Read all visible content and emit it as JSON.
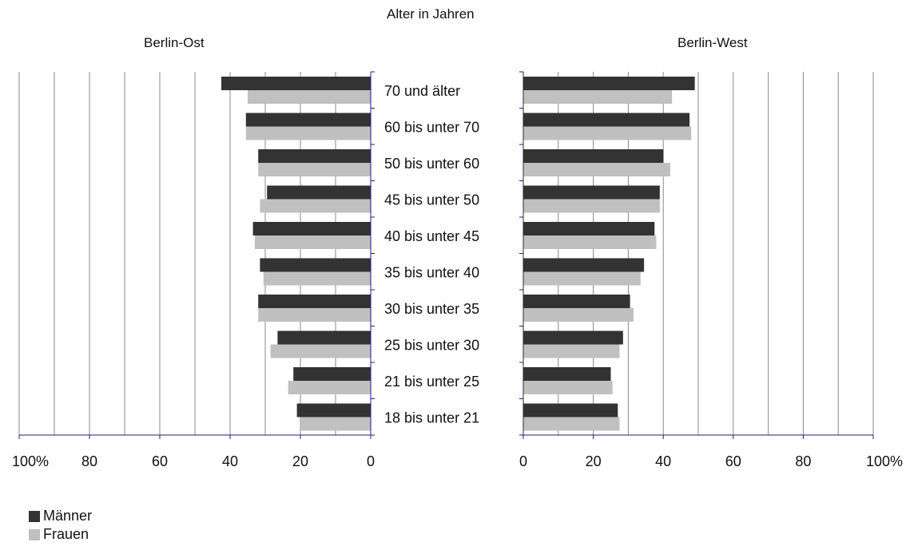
{
  "title": "Alter in Jahren",
  "colors": {
    "men": "#333333",
    "women": "#c0c0c0",
    "axis": "#1f1f7a",
    "grid": "#888888"
  },
  "legend": {
    "men": "Männer",
    "women": "Frauen"
  },
  "chart_data": [
    {
      "type": "bar",
      "orientation": "horizontal",
      "direction": "right-to-left",
      "title": "Berlin-Ost",
      "categories": [
        "70 und älter",
        "60 bis unter 70",
        "50 bis unter 60",
        "45 bis unter 50",
        "40 bis unter 45",
        "35 bis unter 40",
        "30 bis unter 35",
        "25 bis unter 30",
        "21 bis unter 25",
        "18 bis unter 21"
      ],
      "series": [
        {
          "name": "Männer",
          "values": [
            42.5,
            35.5,
            32,
            29.5,
            33.5,
            31.5,
            32,
            26.5,
            22,
            21
          ]
        },
        {
          "name": "Frauen",
          "values": [
            35,
            35.5,
            32,
            31.5,
            33,
            30.5,
            32,
            28.5,
            23.5,
            20
          ]
        }
      ],
      "xlim": [
        0,
        100
      ],
      "tick_labels": [
        "100%",
        "80",
        "60",
        "40",
        "20",
        "0"
      ],
      "grid": true
    },
    {
      "type": "bar",
      "orientation": "horizontal",
      "direction": "left-to-right",
      "title": "Berlin-West",
      "categories": [
        "70 und älter",
        "60 bis unter 70",
        "50 bis unter 60",
        "45 bis unter 50",
        "40 bis unter 45",
        "35 bis unter 40",
        "30 bis unter 35",
        "25 bis unter 30",
        "21 bis unter 25",
        "18 bis unter 21"
      ],
      "series": [
        {
          "name": "Männer",
          "values": [
            49,
            47.5,
            40,
            39,
            37.5,
            34.5,
            30.5,
            28.5,
            25,
            27
          ]
        },
        {
          "name": "Frauen",
          "values": [
            42.5,
            48,
            42,
            39,
            38,
            33.5,
            31.5,
            27.5,
            25.5,
            27.5
          ]
        }
      ],
      "xlim": [
        0,
        100
      ],
      "tick_labels": [
        "0",
        "20",
        "40",
        "60",
        "80",
        "100%"
      ],
      "grid": true
    }
  ]
}
